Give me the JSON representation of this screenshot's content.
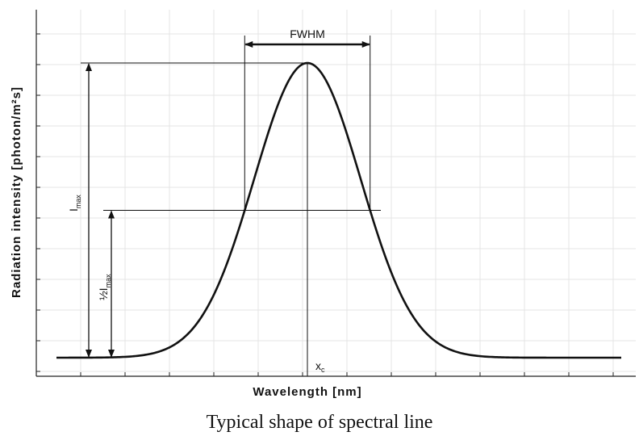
{
  "chart_data": {
    "type": "line",
    "title": "",
    "xlabel": "Wavelength [nm]",
    "ylabel": "Radiation intensity [photon/m²s]",
    "grid": true,
    "curve_shape": "gaussian",
    "series": [
      {
        "peak_relative": 1.0,
        "half_max_relative": 0.5
      }
    ],
    "annotations": {
      "fwhm": "FWHM",
      "imax_main": "I",
      "imax_sub": "max",
      "half_frac": "½",
      "half_i": "I",
      "half_sub": "max",
      "x0_main": "x",
      "x0_sub": "c"
    }
  },
  "caption": "Typical shape of spectral line",
  "colors": {
    "curve": "#111111",
    "grid": "#e4e4e4",
    "axes": "#222222"
  }
}
